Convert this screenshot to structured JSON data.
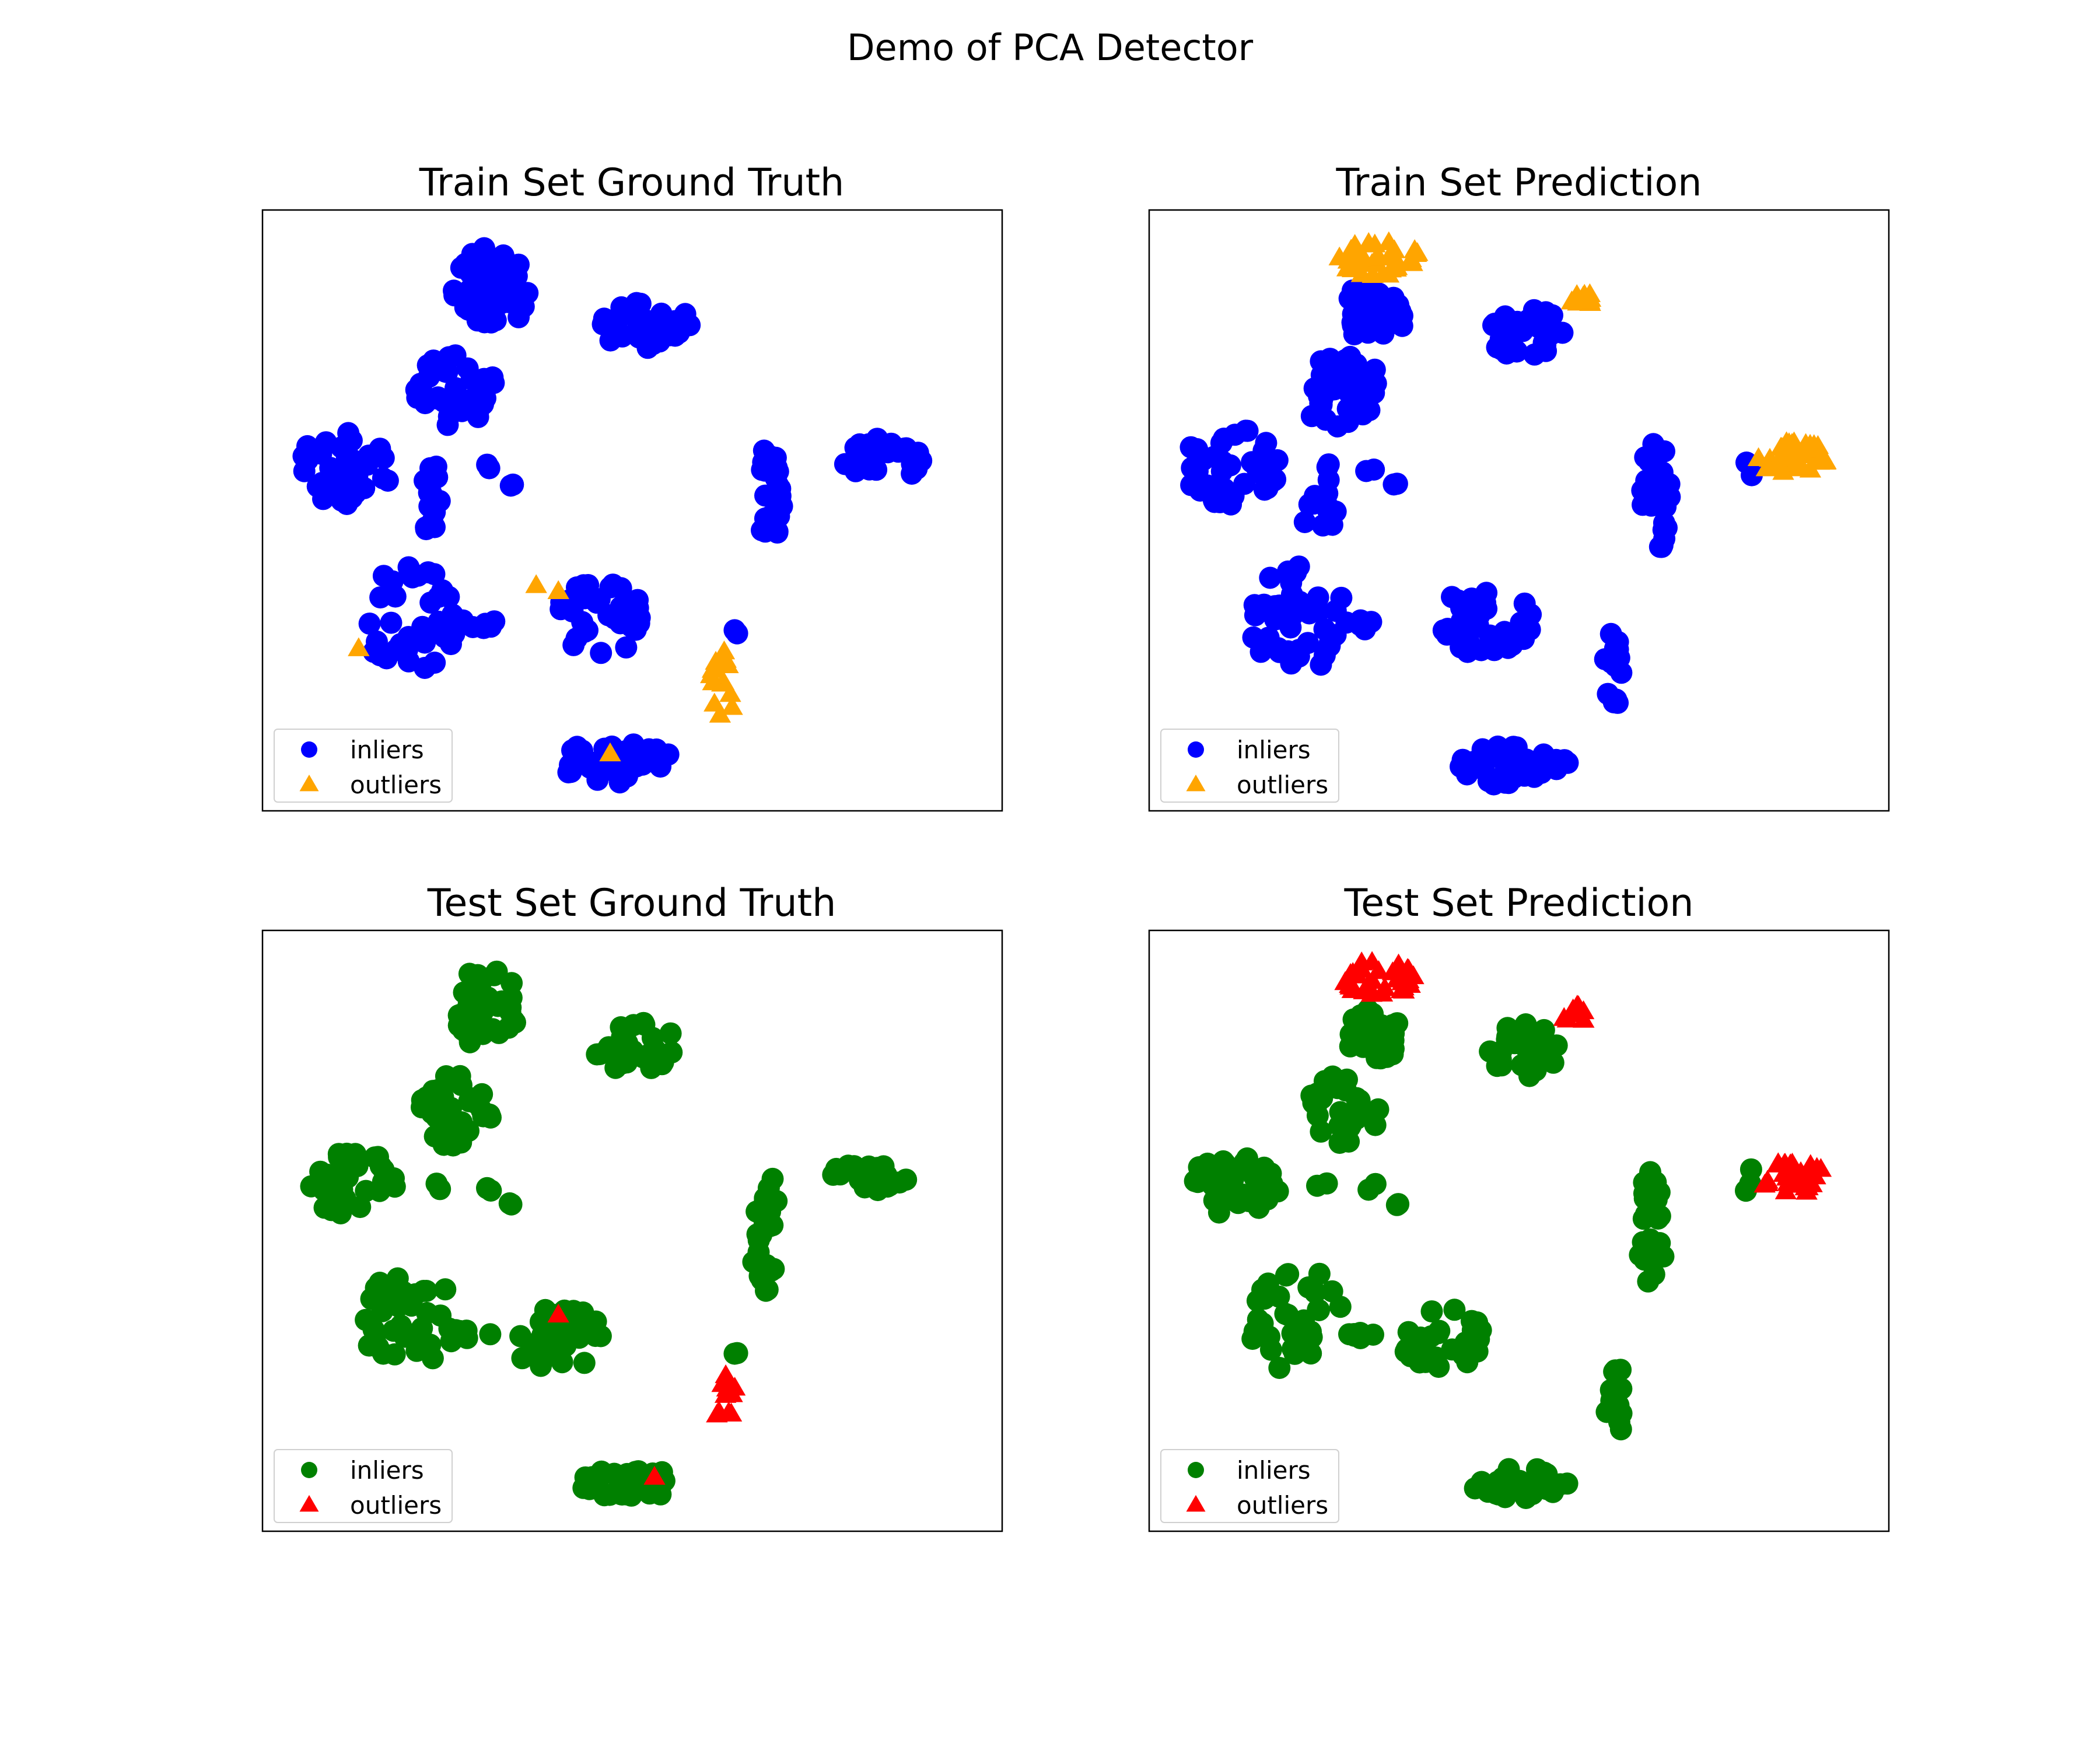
{
  "figure": {
    "title": "Demo of PCA Detector"
  },
  "colors": {
    "train_inlier": "#0000ff",
    "train_outlier": "#ffa500",
    "test_inlier": "#008000",
    "test_outlier": "#ff0000"
  },
  "chart_data": [
    {
      "type": "scatter",
      "title": "Train Set Ground Truth",
      "xlabel": "",
      "ylabel": "",
      "xlim": [
        0,
        100
      ],
      "ylim": [
        0,
        100
      ],
      "grid": false,
      "ticks": false,
      "legend": {
        "placement": "lower-left",
        "entries": [
          "inliers",
          "outliers"
        ]
      },
      "series": [
        {
          "name": "inliers",
          "marker": "circle",
          "color": "#0000ff",
          "clusters": [
            {
              "x": 30.5,
              "y": 87.0,
              "rx": 5.5,
              "ry": 7.5,
              "n": 50
            },
            {
              "x": 51.5,
              "y": 81.0,
              "rx": 6.5,
              "ry": 4.0,
              "n": 40
            },
            {
              "x": 26.0,
              "y": 70.0,
              "rx": 5.5,
              "ry": 6.5,
              "n": 40
            },
            {
              "x": 11.0,
              "y": 57.5,
              "rx": 6.5,
              "ry": 6.5,
              "n": 40
            },
            {
              "x": 83.5,
              "y": 58.5,
              "rx": 6.0,
              "ry": 3.5,
              "n": 30
            },
            {
              "x": 68.5,
              "y": 53.0,
              "rx": 2.0,
              "ry": 10.0,
              "n": 30
            },
            {
              "x": 45.5,
              "y": 32.0,
              "rx": 6.5,
              "ry": 6.0,
              "n": 40
            },
            {
              "x": 20.0,
              "y": 32.0,
              "rx": 6.5,
              "ry": 9.0,
              "n": 40
            },
            {
              "x": 47.5,
              "y": 8.0,
              "rx": 8.5,
              "ry": 3.5,
              "n": 40
            },
            {
              "x": 23.0,
              "y": 51.0,
              "rx": 2.5,
              "ry": 5.0,
              "n": 12
            },
            {
              "x": 29.0,
              "y": 31.0,
              "rx": 3.0,
              "ry": 1.0,
              "n": 6
            },
            {
              "x": 23.5,
              "y": 57.5,
              "rx": 1.0,
              "ry": 1.0,
              "n": 2
            },
            {
              "x": 30.0,
              "y": 57.0,
              "rx": 1.0,
              "ry": 1.0,
              "n": 2
            },
            {
              "x": 33.5,
              "y": 54.5,
              "rx": 0.5,
              "ry": 0.5,
              "n": 2
            },
            {
              "x": 64.0,
              "y": 30.0,
              "rx": 0.5,
              "ry": 0.5,
              "n": 2
            }
          ]
        },
        {
          "name": "outliers",
          "marker": "triangle",
          "color": "#ffa500",
          "points": [
            [
              13.0,
              27.0
            ],
            [
              37.0,
              37.5
            ],
            [
              40.0,
              36.5
            ],
            [
              47.0,
              9.5
            ]
          ],
          "clusters": [
            {
              "x": 62.5,
              "y": 21.0,
              "rx": 2.0,
              "ry": 6.0,
              "n": 14
            }
          ]
        }
      ]
    },
    {
      "type": "scatter",
      "title": "Train Set Prediction",
      "xlabel": "",
      "ylabel": "",
      "xlim": [
        0,
        100
      ],
      "ylim": [
        0,
        100
      ],
      "grid": false,
      "ticks": false,
      "legend": {
        "placement": "lower-left",
        "entries": [
          "inliers",
          "outliers"
        ]
      },
      "series": [
        {
          "name": "inliers",
          "marker": "circle",
          "color": "#0000ff",
          "clusters": [
            {
              "x": 30.5,
              "y": 83.0,
              "rx": 5.0,
              "ry": 4.5,
              "n": 35
            },
            {
              "x": 51.0,
              "y": 79.5,
              "rx": 5.5,
              "ry": 4.0,
              "n": 30
            },
            {
              "x": 26.0,
              "y": 70.0,
              "rx": 5.5,
              "ry": 6.5,
              "n": 40
            },
            {
              "x": 11.0,
              "y": 57.5,
              "rx": 6.5,
              "ry": 6.5,
              "n": 40
            },
            {
              "x": 68.5,
              "y": 53.0,
              "rx": 2.0,
              "ry": 10.0,
              "n": 30
            },
            {
              "x": 45.5,
              "y": 32.0,
              "rx": 6.5,
              "ry": 6.0,
              "n": 40
            },
            {
              "x": 20.0,
              "y": 32.0,
              "rx": 6.5,
              "ry": 9.0,
              "n": 40
            },
            {
              "x": 62.5,
              "y": 23.0,
              "rx": 1.5,
              "ry": 6.5,
              "n": 16
            },
            {
              "x": 49.0,
              "y": 7.5,
              "rx": 8.0,
              "ry": 3.5,
              "n": 40
            },
            {
              "x": 23.0,
              "y": 51.0,
              "rx": 2.5,
              "ry": 5.0,
              "n": 12
            },
            {
              "x": 29.0,
              "y": 31.0,
              "rx": 3.0,
              "ry": 1.0,
              "n": 6
            },
            {
              "x": 23.5,
              "y": 57.5,
              "rx": 1.0,
              "ry": 1.0,
              "n": 2
            },
            {
              "x": 30.0,
              "y": 57.0,
              "rx": 1.0,
              "ry": 1.0,
              "n": 2
            },
            {
              "x": 33.5,
              "y": 54.5,
              "rx": 0.5,
              "ry": 0.5,
              "n": 2
            },
            {
              "x": 81.5,
              "y": 57.5,
              "rx": 1.0,
              "ry": 2.0,
              "n": 3
            }
          ]
        },
        {
          "name": "outliers",
          "marker": "triangle",
          "color": "#ffa500",
          "clusters": [
            {
              "x": 31.0,
              "y": 92.0,
              "rx": 5.5,
              "ry": 3.0,
              "n": 40
            },
            {
              "x": 58.5,
              "y": 85.0,
              "rx": 1.5,
              "ry": 1.5,
              "n": 10
            },
            {
              "x": 87.0,
              "y": 59.0,
              "rx": 5.0,
              "ry": 3.0,
              "n": 40
            }
          ]
        }
      ]
    },
    {
      "type": "scatter",
      "title": "Test Set Ground Truth",
      "xlabel": "",
      "ylabel": "",
      "xlim": [
        0,
        100
      ],
      "ylim": [
        0,
        100
      ],
      "grid": false,
      "ticks": false,
      "legend": {
        "placement": "lower-left",
        "entries": [
          "inliers",
          "outliers"
        ]
      },
      "series": [
        {
          "name": "inliers",
          "marker": "circle",
          "color": "#008000",
          "clusters": [
            {
              "x": 30.5,
              "y": 87.0,
              "rx": 4.5,
              "ry": 7.0,
              "n": 40
            },
            {
              "x": 50.5,
              "y": 80.5,
              "rx": 5.5,
              "ry": 4.5,
              "n": 30
            },
            {
              "x": 26.0,
              "y": 70.0,
              "rx": 5.0,
              "ry": 6.0,
              "n": 35
            },
            {
              "x": 12.0,
              "y": 58.0,
              "rx": 6.0,
              "ry": 5.5,
              "n": 35
            },
            {
              "x": 82.0,
              "y": 59.0,
              "rx": 5.5,
              "ry": 2.5,
              "n": 20
            },
            {
              "x": 68.0,
              "y": 50.0,
              "rx": 2.0,
              "ry": 10.0,
              "n": 25
            },
            {
              "x": 40.0,
              "y": 32.0,
              "rx": 6.0,
              "ry": 5.5,
              "n": 30
            },
            {
              "x": 20.0,
              "y": 35.0,
              "rx": 6.5,
              "ry": 9.0,
              "n": 35
            },
            {
              "x": 50.0,
              "y": 8.0,
              "rx": 7.0,
              "ry": 2.5,
              "n": 30
            },
            {
              "x": 29.0,
              "y": 33.0,
              "rx": 3.5,
              "ry": 1.0,
              "n": 6
            },
            {
              "x": 23.5,
              "y": 57.5,
              "rx": 1.0,
              "ry": 1.0,
              "n": 2
            },
            {
              "x": 30.0,
              "y": 57.0,
              "rx": 1.0,
              "ry": 1.0,
              "n": 2
            },
            {
              "x": 33.5,
              "y": 54.5,
              "rx": 0.5,
              "ry": 0.5,
              "n": 2
            },
            {
              "x": 64.0,
              "y": 30.0,
              "rx": 0.5,
              "ry": 0.5,
              "n": 2
            }
          ]
        },
        {
          "name": "outliers",
          "marker": "triangle",
          "color": "#ff0000",
          "points": [
            [
              40.0,
              36.0
            ],
            [
              53.0,
              9.0
            ]
          ],
          "clusters": [
            {
              "x": 62.5,
              "y": 22.0,
              "rx": 1.5,
              "ry": 5.0,
              "n": 12
            }
          ]
        }
      ]
    },
    {
      "type": "scatter",
      "title": "Test Set Prediction",
      "xlabel": "",
      "ylabel": "",
      "xlim": [
        0,
        100
      ],
      "ylim": [
        0,
        100
      ],
      "grid": false,
      "ticks": false,
      "legend": {
        "placement": "lower-left",
        "entries": [
          "inliers",
          "outliers"
        ]
      },
      "series": [
        {
          "name": "inliers",
          "marker": "circle",
          "color": "#008000",
          "clusters": [
            {
              "x": 30.5,
              "y": 83.0,
              "rx": 4.5,
              "ry": 4.5,
              "n": 30
            },
            {
              "x": 50.5,
              "y": 80.0,
              "rx": 5.0,
              "ry": 4.5,
              "n": 25
            },
            {
              "x": 26.0,
              "y": 70.0,
              "rx": 5.0,
              "ry": 6.0,
              "n": 35
            },
            {
              "x": 12.0,
              "y": 58.0,
              "rx": 6.0,
              "ry": 5.5,
              "n": 35
            },
            {
              "x": 68.0,
              "y": 50.0,
              "rx": 2.0,
              "ry": 10.0,
              "n": 25
            },
            {
              "x": 40.0,
              "y": 32.0,
              "rx": 6.0,
              "ry": 5.5,
              "n": 30
            },
            {
              "x": 20.0,
              "y": 35.0,
              "rx": 6.5,
              "ry": 9.0,
              "n": 35
            },
            {
              "x": 63.0,
              "y": 22.0,
              "rx": 1.5,
              "ry": 6.0,
              "n": 14
            },
            {
              "x": 50.0,
              "y": 8.0,
              "rx": 7.0,
              "ry": 2.5,
              "n": 30
            },
            {
              "x": 29.0,
              "y": 33.0,
              "rx": 3.5,
              "ry": 1.0,
              "n": 6
            },
            {
              "x": 23.5,
              "y": 57.5,
              "rx": 1.0,
              "ry": 1.0,
              "n": 2
            },
            {
              "x": 30.0,
              "y": 57.0,
              "rx": 1.0,
              "ry": 1.0,
              "n": 2
            },
            {
              "x": 33.5,
              "y": 54.5,
              "rx": 0.5,
              "ry": 0.5,
              "n": 2
            },
            {
              "x": 81.0,
              "y": 58.5,
              "rx": 1.0,
              "ry": 2.0,
              "n": 3
            }
          ]
        },
        {
          "name": "outliers",
          "marker": "triangle",
          "color": "#ff0000",
          "clusters": [
            {
              "x": 31.0,
              "y": 92.0,
              "rx": 5.0,
              "ry": 3.0,
              "n": 35
            },
            {
              "x": 57.5,
              "y": 86.0,
              "rx": 2.0,
              "ry": 1.5,
              "n": 10
            },
            {
              "x": 87.0,
              "y": 58.5,
              "rx": 5.0,
              "ry": 3.0,
              "n": 35
            }
          ]
        }
      ]
    }
  ]
}
